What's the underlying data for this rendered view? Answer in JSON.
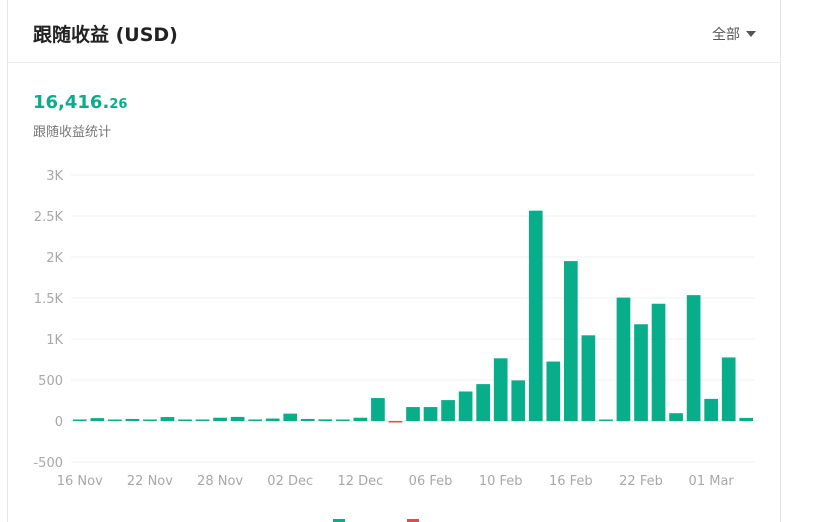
{
  "header": {
    "title": "跟随收益 (USD)",
    "filter_label": "全部"
  },
  "summary": {
    "total_int": "16,416.",
    "total_dec": "26",
    "label": "跟随收益统计"
  },
  "colors": {
    "positive": "#08ae8a",
    "negative": "#e04b4b",
    "grid": "#f0f0f0",
    "tick": "#a8a8a8"
  },
  "chart_data": {
    "type": "bar",
    "ylim": [
      -500,
      3000
    ],
    "yticks": [
      -500,
      0,
      500,
      1000,
      1500,
      2000,
      2500,
      3000
    ],
    "ytick_labels": [
      "-500",
      "0",
      "500",
      "1K",
      "1.5K",
      "2K",
      "2.5K",
      "3K"
    ],
    "xtick_labels": [
      "16 Nov",
      "22 Nov",
      "28 Nov",
      "02 Dec",
      "12 Dec",
      "06 Feb",
      "10 Feb",
      "16 Feb",
      "22 Feb",
      "01 Mar"
    ],
    "xtick_positions": [
      0,
      4,
      8,
      12,
      16,
      20,
      24,
      28,
      32,
      36
    ],
    "values": [
      5,
      35,
      12,
      25,
      10,
      48,
      10,
      8,
      40,
      50,
      5,
      30,
      90,
      25,
      20,
      10,
      40,
      280,
      -15,
      170,
      170,
      255,
      360,
      450,
      765,
      495,
      2565,
      725,
      1950,
      1045,
      8,
      1505,
      1180,
      1430,
      95,
      1535,
      270,
      775,
      38
    ],
    "grid": true,
    "legend": "bottom"
  }
}
